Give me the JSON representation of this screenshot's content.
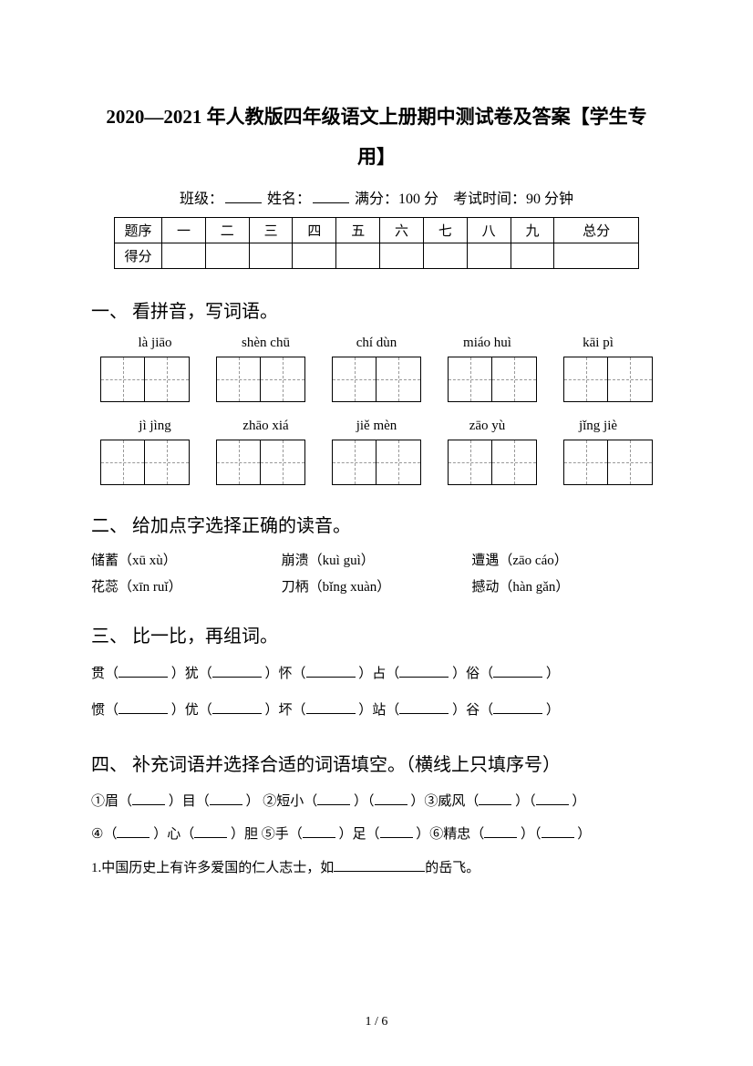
{
  "title_line1": "2020—2021 年人教版四年级语文上册期中测试卷及答案【学生专",
  "title_line2": "用】",
  "info": {
    "class_label": "班级：",
    "name_label": "姓名：",
    "full_score_label": "满分：",
    "full_score_value": "100 分",
    "time_label": "考试时间：",
    "time_value": "90 分钟"
  },
  "score_table": {
    "row1": [
      "题序",
      "一",
      "二",
      "三",
      "四",
      "五",
      "六",
      "七",
      "八",
      "九",
      "总分"
    ],
    "row2_label": "得分"
  },
  "q1": {
    "title": "一、 看拼音，写词语。",
    "pinyin_row1": [
      "là jiāo",
      "shèn chū",
      "chí dùn",
      "miáo huì",
      "kāi pì"
    ],
    "pinyin_row2": [
      "jì jìng",
      "zhāo xiá",
      "jiě mèn",
      "zāo yù",
      "jǐng jiè"
    ]
  },
  "q2": {
    "title": "二、 给加点字选择正确的读音。",
    "items": [
      [
        "储蓄（xū   xù）",
        "崩溃（kuì   guì）",
        "遭遇（zāo   cáo）"
      ],
      [
        "花蕊（xīn   ruǐ）",
        "刀柄（bǐng   xuàn）",
        "撼动（hàn   gǎn）"
      ]
    ]
  },
  "q3": {
    "title": "三、 比一比，再组词。",
    "row1": [
      "贯（",
      "）犹（",
      "）怀（",
      "）占（",
      "）俗（",
      "）"
    ],
    "row2": [
      "惯（",
      "）优（",
      "）坏（",
      "）站（",
      "）谷（",
      "）"
    ]
  },
  "q4": {
    "title": "四、 补充词语并选择合适的词语填空。（横线上只填序号）",
    "line1_parts": [
      "①眉（",
      "）目（",
      "） ②短小（",
      "）（",
      "）③威风（",
      "）（",
      "）"
    ],
    "line2_parts": [
      "④（",
      "）心（",
      "）胆 ⑤手（",
      "）足（",
      "）⑥精忠（",
      "）（",
      "）"
    ],
    "line3_pre": "1.中国历史上有许多爱国的仁人志士，如",
    "line3_post": "的岳飞。"
  },
  "footer": "1 / 6",
  "colors": {
    "text": "#000000",
    "background": "#ffffff",
    "dash": "#999999"
  }
}
